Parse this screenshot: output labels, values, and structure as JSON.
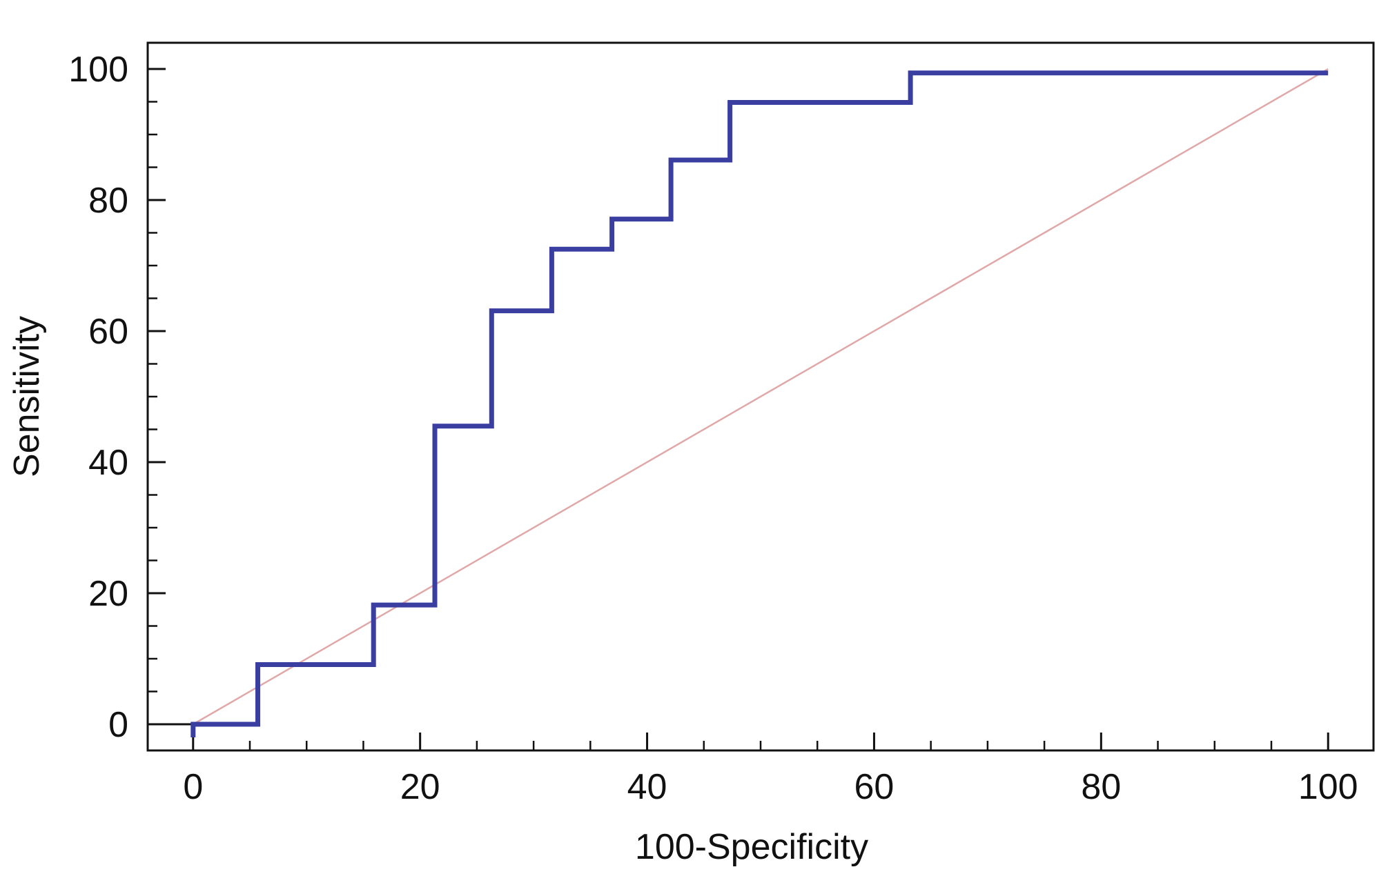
{
  "chart_data": {
    "type": "line",
    "title": "",
    "xlabel": "100-Specificity",
    "ylabel": "Sensitivity",
    "xlim": [
      -4,
      104
    ],
    "ylim": [
      -4,
      104
    ],
    "x_ticks": [
      0,
      20,
      40,
      60,
      80,
      100
    ],
    "y_ticks": [
      0,
      20,
      40,
      60,
      80,
      100
    ],
    "x_minor_step": 5,
    "y_minor_step": 5,
    "grid": false,
    "legend": "none",
    "series": [
      {
        "style": "step",
        "color": "#3a3ea0",
        "x": [
          0,
          0,
          5.7,
          5.7,
          15.9,
          15.9,
          21.3,
          21.3,
          26.3,
          26.3,
          31.6,
          31.6,
          36.9,
          36.9,
          42.1,
          42.1,
          47.3,
          47.3,
          63.2,
          63.2,
          100
        ],
        "y": [
          -2,
          0,
          0,
          9.1,
          9.1,
          18.2,
          18.2,
          45.5,
          45.5,
          63.1,
          63.1,
          72.5,
          72.5,
          77.1,
          77.1,
          86.1,
          86.1,
          94.9,
          94.9,
          99.4,
          99.4
        ]
      },
      {
        "style": "reference",
        "color": "#e0a8a8",
        "x": [
          0,
          100
        ],
        "y": [
          0,
          100
        ]
      }
    ],
    "baseline": {
      "y": 0,
      "x_from": -4,
      "x_to": 0,
      "color": "#111111"
    }
  }
}
